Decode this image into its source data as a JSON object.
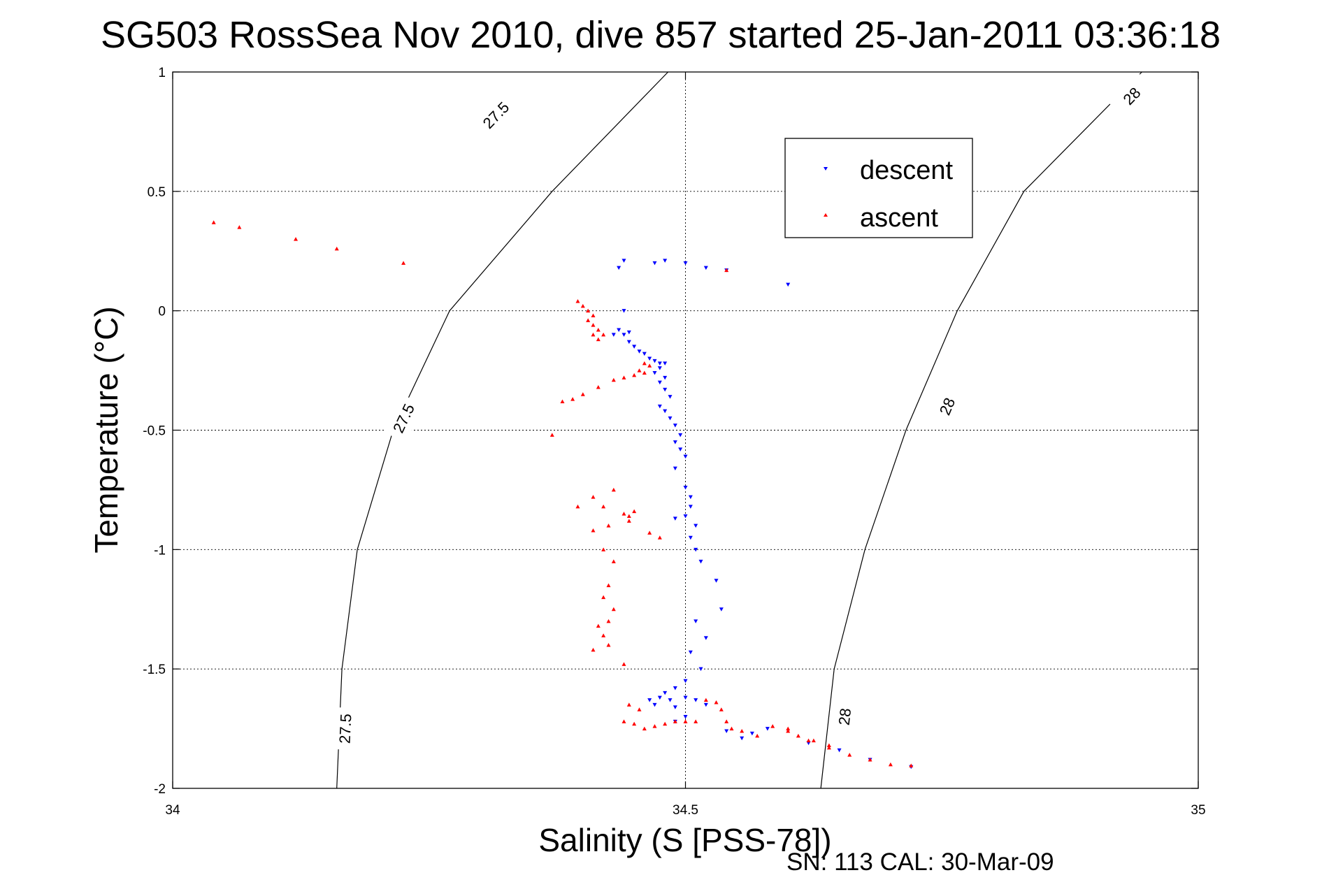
{
  "chart_data": {
    "type": "scatter",
    "title": "SG503 RossSea Nov 2010, dive 857 started 25-Jan-2011 03:36:18",
    "xlabel": "Salinity (S [PSS-78])",
    "ylabel": "Temperature (°C)",
    "xlim": [
      34,
      35
    ],
    "ylim": [
      -2,
      1
    ],
    "xticks": [
      "34",
      "34.5",
      "35"
    ],
    "yticks": [
      "1",
      "0.5",
      "0",
      "-0.5",
      "-1",
      "-1.5",
      "-2"
    ],
    "grid": true,
    "legend_position": "upper-right",
    "footer": "SN: 113  CAL: 30-Mar-09",
    "contours": [
      {
        "label": "27.5",
        "points": [
          [
            34.483,
            1.0
          ],
          [
            34.37,
            0.5
          ],
          [
            34.27,
            0.0
          ],
          [
            34.215,
            -0.5
          ],
          [
            34.18,
            -1.0
          ],
          [
            34.165,
            -1.5
          ],
          [
            34.16,
            -2.0
          ]
        ],
        "label_positions": [
          [
            34.315,
            0.82
          ],
          [
            34.225,
            -0.45
          ],
          [
            34.168,
            -1.75
          ]
        ]
      },
      {
        "label": "28",
        "points": [
          [
            34.945,
            1.0
          ],
          [
            34.83,
            0.5
          ],
          [
            34.765,
            0.0
          ],
          [
            34.715,
            -0.5
          ],
          [
            34.675,
            -1.0
          ],
          [
            34.645,
            -1.5
          ],
          [
            34.632,
            -2.0
          ]
        ],
        "label_positions": [
          [
            34.935,
            0.9
          ],
          [
            34.755,
            -0.4
          ],
          [
            34.655,
            -1.7
          ]
        ]
      }
    ],
    "series": [
      {
        "name": "descent",
        "color": "#0000ff",
        "marker": "triangle-down",
        "points": [
          [
            34.44,
            0.21
          ],
          [
            34.48,
            0.21
          ],
          [
            34.47,
            0.2
          ],
          [
            34.5,
            0.2
          ],
          [
            34.52,
            0.18
          ],
          [
            34.54,
            0.17
          ],
          [
            34.6,
            0.11
          ],
          [
            34.435,
            0.18
          ],
          [
            34.44,
            -0.0
          ],
          [
            34.435,
            -0.08
          ],
          [
            34.445,
            -0.09
          ],
          [
            34.44,
            -0.1
          ],
          [
            34.43,
            -0.1
          ],
          [
            34.445,
            -0.13
          ],
          [
            34.45,
            -0.15
          ],
          [
            34.455,
            -0.17
          ],
          [
            34.46,
            -0.18
          ],
          [
            34.465,
            -0.2
          ],
          [
            34.47,
            -0.21
          ],
          [
            34.475,
            -0.22
          ],
          [
            34.48,
            -0.22
          ],
          [
            34.475,
            -0.24
          ],
          [
            34.47,
            -0.26
          ],
          [
            34.48,
            -0.28
          ],
          [
            34.475,
            -0.3
          ],
          [
            34.48,
            -0.33
          ],
          [
            34.485,
            -0.36
          ],
          [
            34.475,
            -0.4
          ],
          [
            34.48,
            -0.42
          ],
          [
            34.485,
            -0.45
          ],
          [
            34.49,
            -0.48
          ],
          [
            34.495,
            -0.52
          ],
          [
            34.49,
            -0.55
          ],
          [
            34.495,
            -0.58
          ],
          [
            34.5,
            -0.61
          ],
          [
            34.49,
            -0.66
          ],
          [
            34.5,
            -0.74
          ],
          [
            34.505,
            -0.78
          ],
          [
            34.505,
            -0.82
          ],
          [
            34.49,
            -0.87
          ],
          [
            34.5,
            -0.86
          ],
          [
            34.51,
            -0.9
          ],
          [
            34.505,
            -0.95
          ],
          [
            34.51,
            -1.0
          ],
          [
            34.515,
            -1.05
          ],
          [
            34.53,
            -1.13
          ],
          [
            34.535,
            -1.25
          ],
          [
            34.51,
            -1.3
          ],
          [
            34.52,
            -1.37
          ],
          [
            34.505,
            -1.43
          ],
          [
            34.515,
            -1.5
          ],
          [
            34.5,
            -1.55
          ],
          [
            34.49,
            -1.58
          ],
          [
            34.48,
            -1.6
          ],
          [
            34.475,
            -1.62
          ],
          [
            34.465,
            -1.63
          ],
          [
            34.47,
            -1.65
          ],
          [
            34.485,
            -1.63
          ],
          [
            34.49,
            -1.66
          ],
          [
            34.5,
            -1.62
          ],
          [
            34.51,
            -1.63
          ],
          [
            34.52,
            -1.65
          ],
          [
            34.5,
            -1.7
          ],
          [
            34.49,
            -1.72
          ],
          [
            34.54,
            -1.76
          ],
          [
            34.555,
            -1.79
          ],
          [
            34.565,
            -1.77
          ],
          [
            34.58,
            -1.75
          ],
          [
            34.62,
            -1.81
          ],
          [
            34.65,
            -1.84
          ],
          [
            34.68,
            -1.88
          ],
          [
            34.72,
            -1.91
          ]
        ]
      },
      {
        "name": "ascent",
        "color": "#ff0000",
        "marker": "triangle-up",
        "points": [
          [
            34.04,
            0.37
          ],
          [
            34.065,
            0.35
          ],
          [
            34.12,
            0.3
          ],
          [
            34.16,
            0.26
          ],
          [
            34.225,
            0.2
          ],
          [
            34.54,
            0.17
          ],
          [
            34.395,
            0.04
          ],
          [
            34.4,
            0.02
          ],
          [
            34.405,
            0.0
          ],
          [
            34.41,
            -0.02
          ],
          [
            34.405,
            -0.04
          ],
          [
            34.41,
            -0.06
          ],
          [
            34.415,
            -0.08
          ],
          [
            34.41,
            -0.1
          ],
          [
            34.42,
            -0.1
          ],
          [
            34.415,
            -0.12
          ],
          [
            34.46,
            -0.22
          ],
          [
            34.465,
            -0.23
          ],
          [
            34.455,
            -0.25
          ],
          [
            34.46,
            -0.26
          ],
          [
            34.45,
            -0.27
          ],
          [
            34.44,
            -0.28
          ],
          [
            34.43,
            -0.29
          ],
          [
            34.415,
            -0.32
          ],
          [
            34.4,
            -0.35
          ],
          [
            34.39,
            -0.37
          ],
          [
            34.38,
            -0.38
          ],
          [
            34.37,
            -0.52
          ],
          [
            34.43,
            -0.75
          ],
          [
            34.41,
            -0.78
          ],
          [
            34.395,
            -0.82
          ],
          [
            34.42,
            -0.82
          ],
          [
            34.44,
            -0.85
          ],
          [
            34.445,
            -0.86
          ],
          [
            34.45,
            -0.84
          ],
          [
            34.445,
            -0.88
          ],
          [
            34.425,
            -0.9
          ],
          [
            34.41,
            -0.92
          ],
          [
            34.465,
            -0.93
          ],
          [
            34.475,
            -0.95
          ],
          [
            34.42,
            -1.0
          ],
          [
            34.43,
            -1.05
          ],
          [
            34.425,
            -1.15
          ],
          [
            34.42,
            -1.2
          ],
          [
            34.43,
            -1.25
          ],
          [
            34.425,
            -1.3
          ],
          [
            34.415,
            -1.32
          ],
          [
            34.42,
            -1.36
          ],
          [
            34.425,
            -1.4
          ],
          [
            34.41,
            -1.42
          ],
          [
            34.44,
            -1.48
          ],
          [
            34.445,
            -1.65
          ],
          [
            34.455,
            -1.67
          ],
          [
            34.44,
            -1.72
          ],
          [
            34.45,
            -1.73
          ],
          [
            34.46,
            -1.75
          ],
          [
            34.47,
            -1.74
          ],
          [
            34.48,
            -1.73
          ],
          [
            34.49,
            -1.72
          ],
          [
            34.5,
            -1.72
          ],
          [
            34.51,
            -1.72
          ],
          [
            34.52,
            -1.63
          ],
          [
            34.53,
            -1.64
          ],
          [
            34.535,
            -1.67
          ],
          [
            34.54,
            -1.72
          ],
          [
            34.545,
            -1.75
          ],
          [
            34.555,
            -1.76
          ],
          [
            34.57,
            -1.78
          ],
          [
            34.585,
            -1.74
          ],
          [
            34.6,
            -1.76
          ],
          [
            34.62,
            -1.8
          ],
          [
            34.64,
            -1.83
          ],
          [
            34.66,
            -1.86
          ],
          [
            34.68,
            -1.88
          ],
          [
            34.7,
            -1.9
          ],
          [
            34.72,
            -1.905
          ],
          [
            34.6,
            -1.75
          ],
          [
            34.61,
            -1.78
          ],
          [
            34.625,
            -1.8
          ],
          [
            34.64,
            -1.82
          ]
        ]
      }
    ]
  }
}
